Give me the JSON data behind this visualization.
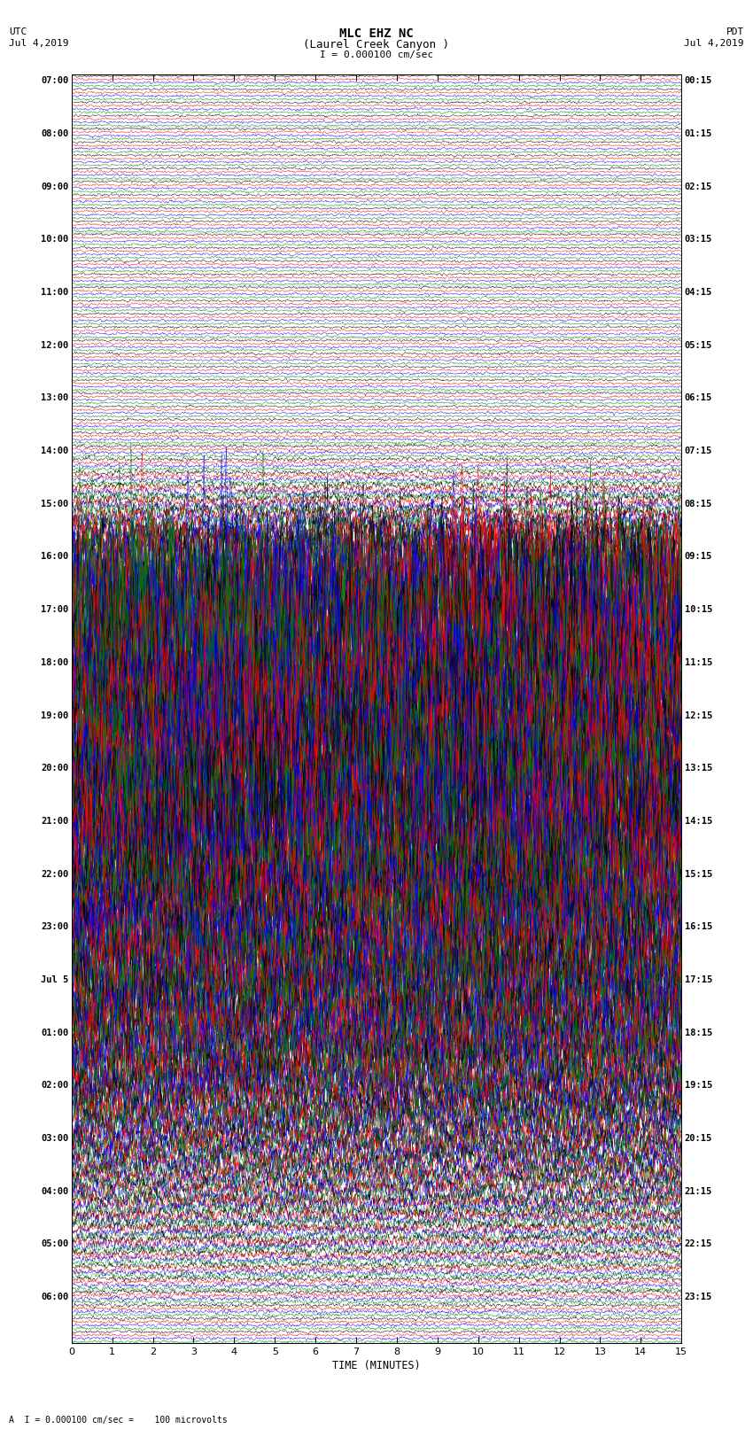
{
  "title_line1": "MLC EHZ NC",
  "title_line2": "(Laurel Creek Canyon )",
  "title_scale": "I = 0.000100 cm/sec",
  "utc_label": "UTC",
  "utc_date": "Jul 4,2019",
  "pdt_label": "PDT",
  "pdt_date": "Jul 4,2019",
  "xlabel": "TIME (MINUTES)",
  "footer": "A  I = 0.000100 cm/sec =    100 microvolts",
  "left_times": [
    "07:00",
    "",
    "",
    "",
    "08:00",
    "",
    "",
    "",
    "09:00",
    "",
    "",
    "",
    "10:00",
    "",
    "",
    "",
    "11:00",
    "",
    "",
    "",
    "12:00",
    "",
    "",
    "",
    "13:00",
    "",
    "",
    "",
    "14:00",
    "",
    "",
    "",
    "15:00",
    "",
    "",
    "",
    "16:00",
    "",
    "",
    "",
    "17:00",
    "",
    "",
    "",
    "18:00",
    "",
    "",
    "",
    "19:00",
    "",
    "",
    "",
    "20:00",
    "",
    "",
    "",
    "21:00",
    "",
    "",
    "",
    "22:00",
    "",
    "",
    "",
    "23:00",
    "",
    "",
    "",
    "Jul 5",
    "",
    "",
    "",
    "01:00",
    "",
    "",
    "",
    "02:00",
    "",
    "",
    "",
    "03:00",
    "",
    "",
    "",
    "04:00",
    "",
    "",
    "",
    "05:00",
    "",
    "",
    "",
    "06:00",
    "",
    "",
    ""
  ],
  "right_times": [
    "00:15",
    "",
    "",
    "",
    "01:15",
    "",
    "",
    "",
    "02:15",
    "",
    "",
    "",
    "03:15",
    "",
    "",
    "",
    "04:15",
    "",
    "",
    "",
    "05:15",
    "",
    "",
    "",
    "06:15",
    "",
    "",
    "",
    "07:15",
    "",
    "",
    "",
    "08:15",
    "",
    "",
    "",
    "09:15",
    "",
    "",
    "",
    "10:15",
    "",
    "",
    "",
    "11:15",
    "",
    "",
    "",
    "12:15",
    "",
    "",
    "",
    "13:15",
    "",
    "",
    "",
    "14:15",
    "",
    "",
    "",
    "15:15",
    "",
    "",
    "",
    "16:15",
    "",
    "",
    "",
    "17:15",
    "",
    "",
    "",
    "18:15",
    "",
    "",
    "",
    "19:15",
    "",
    "",
    "",
    "20:15",
    "",
    "",
    "",
    "21:15",
    "",
    "",
    "",
    "22:15",
    "",
    "",
    "",
    "23:15",
    "",
    "",
    ""
  ],
  "n_rows": 96,
  "n_cols": 4,
  "minute_span": 15,
  "colors": [
    "black",
    "red",
    "blue",
    "green"
  ],
  "bg_color": "white",
  "noise_seed": 42,
  "amp_profile": [
    0.18,
    0.18,
    0.18,
    0.18,
    0.18,
    0.18,
    0.18,
    0.18,
    0.18,
    0.18,
    0.18,
    0.18,
    0.18,
    0.18,
    0.18,
    0.18,
    0.18,
    0.18,
    0.18,
    0.18,
    0.18,
    0.18,
    0.18,
    0.18,
    0.18,
    0.18,
    0.2,
    0.22,
    0.25,
    0.3,
    0.4,
    0.6,
    0.8,
    1.2,
    1.8,
    2.5,
    3.5,
    4.5,
    5.5,
    6.0,
    6.0,
    6.0,
    6.0,
    6.0,
    5.5,
    5.0,
    5.5,
    5.5,
    5.5,
    5.5,
    5.5,
    5.5,
    5.5,
    5.5,
    5.5,
    5.5,
    5.5,
    5.0,
    5.5,
    5.5,
    5.0,
    4.5,
    4.5,
    4.5,
    4.5,
    4.5,
    4.5,
    4.5,
    4.0,
    4.0,
    4.0,
    4.0,
    4.0,
    3.5,
    3.5,
    3.0,
    3.0,
    2.5,
    2.5,
    2.5,
    2.0,
    2.0,
    1.8,
    1.5,
    1.5,
    1.2,
    1.0,
    0.8,
    0.8,
    0.6,
    0.5,
    0.4,
    0.35,
    0.3,
    0.25,
    0.22
  ]
}
